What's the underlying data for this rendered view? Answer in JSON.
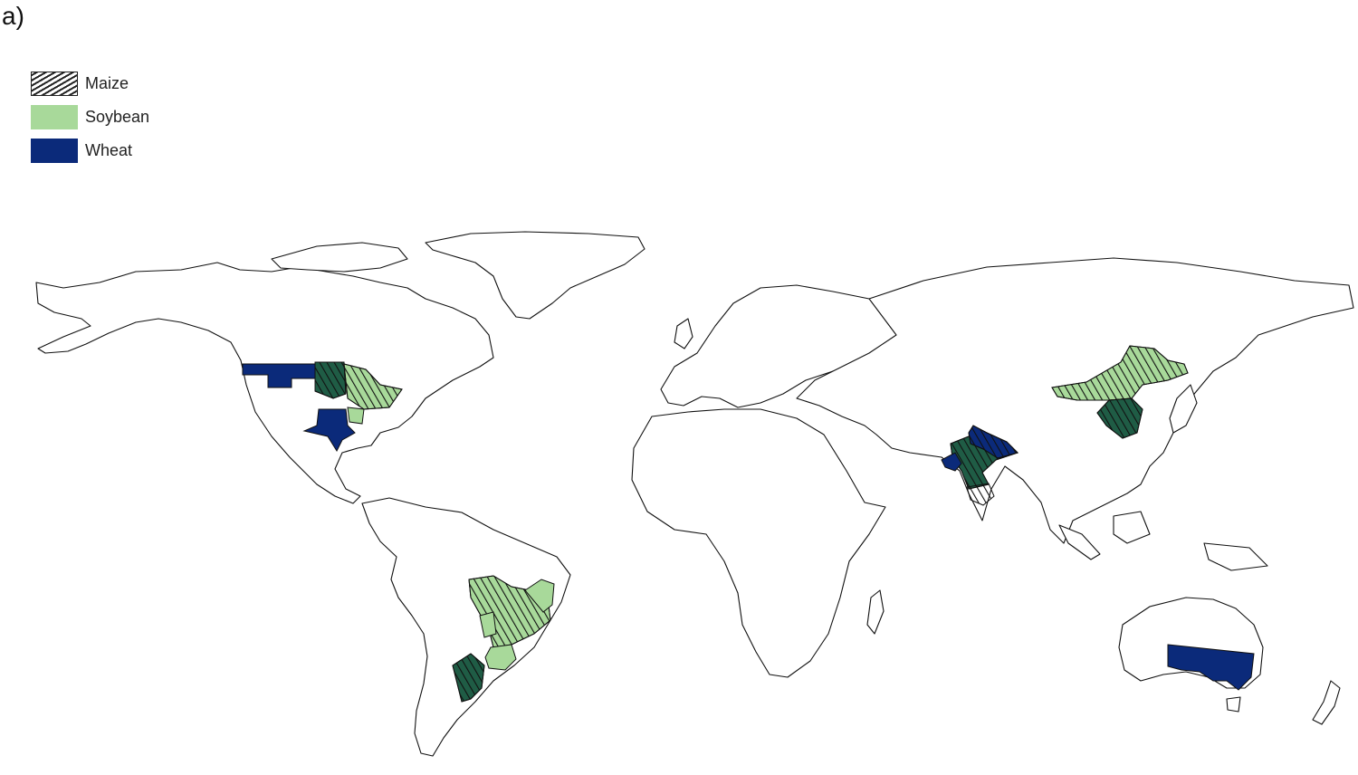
{
  "panel_label": "a)",
  "legend": {
    "items": [
      {
        "label": "Maize",
        "pattern": "hatched",
        "color": "#222222"
      },
      {
        "label": "Soybean",
        "pattern": "solid",
        "color": "#a8d99a"
      },
      {
        "label": "Wheat",
        "pattern": "solid",
        "color": "#0b2a7a"
      }
    ]
  },
  "map": {
    "projection": "equirectangular world outline",
    "colors": {
      "soybean": "#a8d99a",
      "wheat": "#0b2a7a",
      "maize_and_wheat": "#1f5c45",
      "outline": "#111111"
    },
    "regions": [
      {
        "name": "US Northern Plains",
        "crops": [
          "Wheat"
        ]
      },
      {
        "name": "US Corn Belt (west)",
        "crops": [
          "Maize",
          "Wheat"
        ]
      },
      {
        "name": "US Corn Belt (east)",
        "crops": [
          "Maize",
          "Soybean"
        ]
      },
      {
        "name": "US Midwest (south)",
        "crops": [
          "Soybean"
        ]
      },
      {
        "name": "Texas",
        "crops": [
          "Wheat"
        ]
      },
      {
        "name": "Northeast China",
        "crops": [
          "Maize",
          "Soybean"
        ]
      },
      {
        "name": "North China Plain",
        "crops": [
          "Maize",
          "Wheat"
        ]
      },
      {
        "name": "Northern India",
        "crops": [
          "Maize",
          "Wheat"
        ]
      },
      {
        "name": "Gujarat",
        "crops": [
          "Wheat"
        ]
      },
      {
        "name": "Central India",
        "crops": [
          "Maize"
        ]
      },
      {
        "name": "Central-West Brazil",
        "crops": [
          "Maize",
          "Soybean"
        ]
      },
      {
        "name": "Southeast Brazil",
        "crops": [
          "Soybean"
        ]
      },
      {
        "name": "Southern Brazil",
        "crops": [
          "Soybean"
        ]
      },
      {
        "name": "Argentina Pampas",
        "crops": [
          "Maize",
          "Wheat"
        ]
      },
      {
        "name": "Southeast Australia",
        "crops": [
          "Wheat"
        ]
      }
    ]
  }
}
